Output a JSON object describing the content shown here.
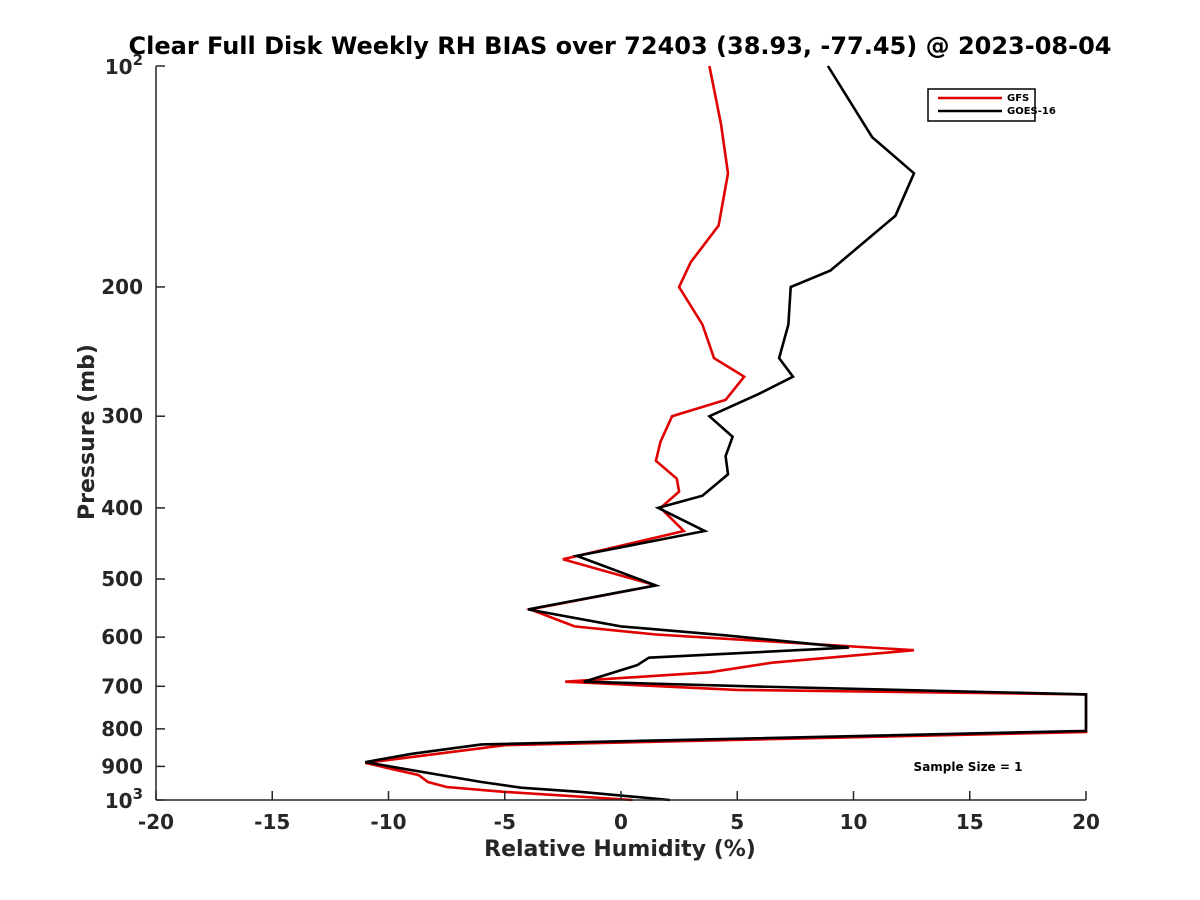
{
  "chart_data": {
    "type": "line",
    "title": "Clear Full Disk Weekly RH BIAS over 72403 (38.93, -77.45) @ 2023-08-04",
    "xlabel": "Relative Humidity (%)",
    "ylabel": "Pressure (mb)",
    "xlim": [
      -20,
      20
    ],
    "ylim": [
      100,
      1000
    ],
    "y_scale": "log",
    "y_reversed": true,
    "xticks": [
      -20,
      -15,
      -10,
      -5,
      0,
      5,
      10,
      15,
      20
    ],
    "xtick_labels": [
      "-20",
      "-15",
      "-10",
      "-5",
      "0",
      "5",
      "10",
      "15",
      "20"
    ],
    "yticks": [
      200,
      300,
      400,
      500,
      600,
      700,
      800,
      900
    ],
    "ytick_labels": [
      "200",
      "300",
      "400",
      "500",
      "600",
      "700",
      "800",
      "900"
    ],
    "y_top_label": {
      "base": "10",
      "exp": "2"
    },
    "y_bottom_label": {
      "base": "10",
      "exp": "3"
    },
    "grid": false,
    "legend_position": "top-right",
    "annotation": "Sample Size = 1",
    "series": [
      {
        "name": "GFS",
        "color": "#e00000",
        "points": [
          [
            3.8,
            100
          ],
          [
            4.3,
            120
          ],
          [
            4.6,
            140
          ],
          [
            4.2,
            165
          ],
          [
            3.0,
            185
          ],
          [
            2.5,
            200
          ],
          [
            3.5,
            225
          ],
          [
            4.0,
            250
          ],
          [
            5.3,
            265
          ],
          [
            4.5,
            285
          ],
          [
            2.2,
            300
          ],
          [
            1.7,
            325
          ],
          [
            1.5,
            345
          ],
          [
            2.4,
            365
          ],
          [
            2.5,
            380
          ],
          [
            1.7,
            400
          ],
          [
            2.7,
            430
          ],
          [
            -2.5,
            470
          ],
          [
            1.5,
            510
          ],
          [
            -3.9,
            550
          ],
          [
            -2.0,
            580
          ],
          [
            1.5,
            595
          ],
          [
            12.6,
            625
          ],
          [
            6.5,
            650
          ],
          [
            3.8,
            670
          ],
          [
            -2.4,
            690
          ],
          [
            5.0,
            708
          ],
          [
            20.0,
            718
          ],
          [
            20.0,
            808
          ],
          [
            -5.0,
            842
          ],
          [
            -8.5,
            870
          ],
          [
            -11.0,
            890
          ],
          [
            -8.7,
            925
          ],
          [
            -8.3,
            945
          ],
          [
            -7.5,
            960
          ],
          [
            -5.0,
            975
          ],
          [
            0.5,
            1000
          ]
        ]
      },
      {
        "name": "GOES-16",
        "color": "#000000",
        "points": [
          [
            8.9,
            100
          ],
          [
            10.8,
            125
          ],
          [
            12.6,
            140
          ],
          [
            11.8,
            160
          ],
          [
            9.0,
            190
          ],
          [
            7.3,
            200
          ],
          [
            7.2,
            225
          ],
          [
            6.8,
            250
          ],
          [
            7.4,
            265
          ],
          [
            5.9,
            280
          ],
          [
            3.8,
            300
          ],
          [
            4.8,
            320
          ],
          [
            4.5,
            340
          ],
          [
            4.6,
            360
          ],
          [
            3.5,
            385
          ],
          [
            1.6,
            400
          ],
          [
            3.6,
            430
          ],
          [
            -1.9,
            465
          ],
          [
            1.5,
            510
          ],
          [
            -4.0,
            550
          ],
          [
            0.0,
            580
          ],
          [
            4.6,
            597
          ],
          [
            9.8,
            620
          ],
          [
            1.2,
            640
          ],
          [
            0.7,
            655
          ],
          [
            -1.6,
            690
          ],
          [
            5.5,
            700
          ],
          [
            20.0,
            718
          ],
          [
            20.0,
            805
          ],
          [
            -6.0,
            840
          ],
          [
            -9.0,
            865
          ],
          [
            -11.0,
            888
          ],
          [
            -9.5,
            905
          ],
          [
            -7.3,
            930
          ],
          [
            -6.0,
            945
          ],
          [
            -4.3,
            962
          ],
          [
            -1.7,
            975
          ],
          [
            2.1,
            1000
          ]
        ]
      }
    ]
  }
}
